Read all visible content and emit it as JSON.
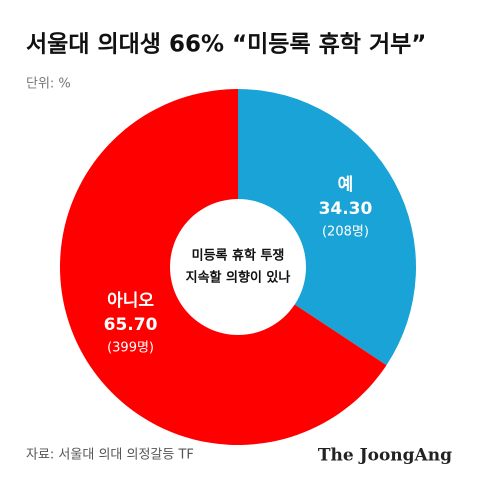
{
  "chart_data": {
    "type": "donut",
    "title": "서울대 의대생 66% “미등록 휴학 거부”",
    "subtitle": "단위: %",
    "center_text": [
      "미등록 휴학 투쟁",
      "지속할 의향이 있나"
    ],
    "categories": [
      "예",
      "아니오"
    ],
    "values": [
      34.3,
      65.7
    ],
    "value_labels": [
      "34.30",
      "65.70"
    ],
    "count_labels": [
      "(208명)",
      "(399명)"
    ],
    "colors": [
      "#1aa3d6",
      "#ff0000"
    ],
    "source": "자료: 서울대 의대 의정갈등 TF",
    "brand": "The JoongAng"
  }
}
